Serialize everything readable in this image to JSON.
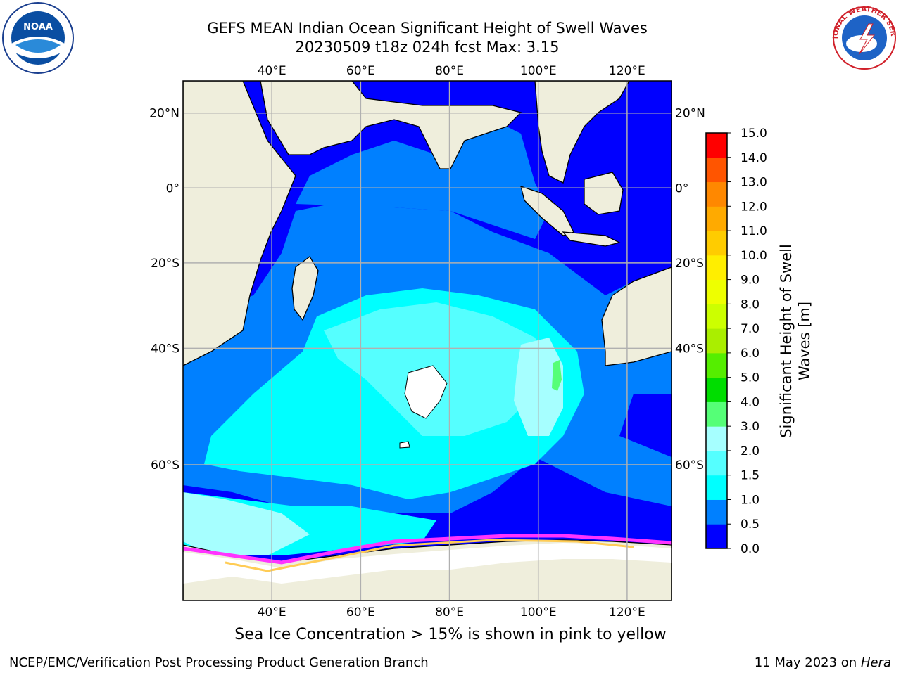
{
  "header": {
    "title_line1": "GEFS MEAN Indian Ocean Significant Height of Swell Waves",
    "title_line2": "20230509 t18z 024h fcst   Max: 3.15"
  },
  "logos": {
    "noaa": {
      "name": "noaa-logo",
      "text": "NOAA"
    },
    "nws": {
      "name": "nws-logo",
      "text": "NATIONAL WEATHER SERVICE"
    }
  },
  "map": {
    "lon_range": [
      20,
      130
    ],
    "lat_range": [
      -74,
      28
    ],
    "lon_ticks": [
      {
        "value": 40,
        "label": "40°E"
      },
      {
        "value": 60,
        "label": "60°E"
      },
      {
        "value": 80,
        "label": "80°E"
      },
      {
        "value": 100,
        "label": "100°E"
      },
      {
        "value": 120,
        "label": "120°E"
      }
    ],
    "lat_ticks": [
      {
        "value": 20,
        "label": "20°N"
      },
      {
        "value": 0,
        "label": "0°"
      },
      {
        "value": -20,
        "label": "20°S"
      },
      {
        "value": -40,
        "label": "40°S"
      },
      {
        "value": -60,
        "label": "60°S"
      }
    ],
    "grid": true,
    "colors": {
      "land": "#efeedc",
      "ocean_low": "#0000ff",
      "ocean_mid": "#0080ff",
      "ocean_high": "#00ffff",
      "ocean_peak": "#a6ffff",
      "sea_ice": "#ffffff",
      "ice_edge_pink": "#ff33ff",
      "ice_edge_yellow": "#ffcc55"
    }
  },
  "colorbar": {
    "title_line1": "Significant Height of Swell",
    "title_line2": "Waves [m]",
    "levels": [
      "0.0",
      "0.5",
      "1.0",
      "1.5",
      "2.0",
      "3.0",
      "4.0",
      "5.0",
      "6.0",
      "7.0",
      "8.0",
      "9.0",
      "10.0",
      "11.0",
      "12.0",
      "13.0",
      "14.0",
      "15.0"
    ],
    "colors": [
      "#0000ff",
      "#0080ff",
      "#00ffff",
      "#55ffff",
      "#a6ffff",
      "#55ff77",
      "#00dd00",
      "#55ee00",
      "#aaee00",
      "#ccff00",
      "#eeff00",
      "#ffee00",
      "#ffcc00",
      "#ffaa00",
      "#ff8800",
      "#ff5500",
      "#ff0000"
    ]
  },
  "annotations": {
    "sea_ice_note": "Sea Ice Concentration > 15% is shown in pink to yellow"
  },
  "footer": {
    "left": "NCEP/EMC/Verification Post Processing Product Generation Branch",
    "date": "11 May 2023 on",
    "machine": "Hera"
  }
}
